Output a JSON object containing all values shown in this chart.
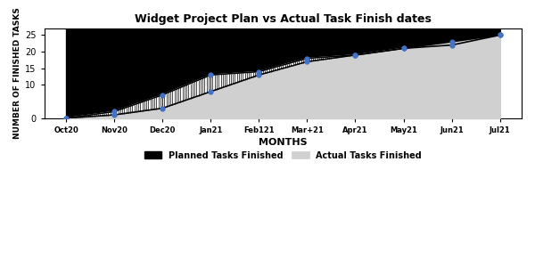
{
  "title": "Widget Project Plan vs Actual Task Finish dates",
  "xlabel": "MONTHS",
  "ylabel": "NUMBER OF FINISHED TASKS",
  "x_labels": [
    "Oct20",
    "Nov20",
    "Dec20",
    "Jan21",
    "Feb121",
    "Mar+21",
    "Apr21",
    "May21",
    "Jun21",
    "Jul21"
  ],
  "planned_y": [
    0,
    2,
    7,
    13,
    14,
    18,
    19,
    21,
    22,
    25
  ],
  "actual_y": [
    0,
    1,
    3,
    8,
    13,
    17,
    19,
    21,
    23,
    25
  ],
  "ymax": 27,
  "ylim": [
    0,
    27
  ],
  "yticks": [
    0,
    10,
    15,
    20,
    25
  ],
  "background_color": "#ffffff",
  "planned_line_color": "#000000",
  "actual_line_color": "#000000",
  "marker_color": "#4472c4",
  "actual_fill_color": "#d0d0d0",
  "legend_planned": "Planned Tasks Finished",
  "legend_actual": "Actual Tasks Finished"
}
